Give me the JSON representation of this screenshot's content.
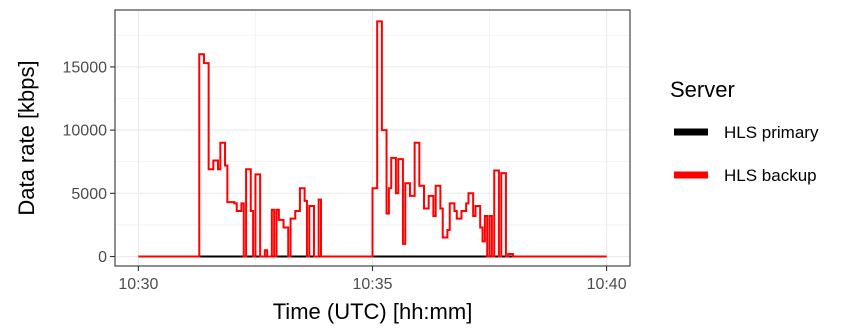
{
  "chart_data": {
    "type": "line",
    "step": true,
    "xlabel": "Time (UTC) [hh:mm]",
    "ylabel": "Data rate [kbps]",
    "xlim": [
      "10:29.5",
      "10:40.5"
    ],
    "ylim": [
      -750,
      19500
    ],
    "x_ticks": [
      {
        "value": "10:30",
        "label": "10:30"
      },
      {
        "value": "10:35",
        "label": "10:35"
      },
      {
        "value": "10:40",
        "label": "10:40"
      }
    ],
    "y_ticks": [
      {
        "value": 0,
        "label": "0"
      },
      {
        "value": 5000,
        "label": "5000"
      },
      {
        "value": 10000,
        "label": "10000"
      },
      {
        "value": 15000,
        "label": "15000"
      }
    ],
    "grid": true,
    "legend": {
      "title": "Server",
      "position": "right",
      "entries": [
        {
          "name": "HLS primary",
          "color": "#000000"
        },
        {
          "name": "HLS backup",
          "color": "#ff0000"
        }
      ]
    },
    "series": [
      {
        "name": "HLS primary",
        "color": "#000000",
        "points": [
          [
            "10:30.0",
            0
          ],
          [
            "10:40.0",
            0
          ]
        ]
      },
      {
        "name": "HLS backup",
        "color": "#ff0000",
        "points": [
          [
            "10:30.0",
            0
          ],
          [
            "10:31.3",
            0
          ],
          [
            "10:31.3",
            16000
          ],
          [
            "10:31.4",
            15300
          ],
          [
            "10:31.5",
            6900
          ],
          [
            "10:31.6",
            7600
          ],
          [
            "10:31.7",
            6900
          ],
          [
            "10:31.75",
            9000
          ],
          [
            "10:31.85",
            7200
          ],
          [
            "10:31.9",
            4300
          ],
          [
            "10:32.05",
            4200
          ],
          [
            "10:32.1",
            3600
          ],
          [
            "10:32.2",
            4200
          ],
          [
            "10:32.25",
            0
          ],
          [
            "10:32.3",
            6900
          ],
          [
            "10:32.4",
            3600
          ],
          [
            "10:32.45",
            0
          ],
          [
            "10:32.5",
            6500
          ],
          [
            "10:32.6",
            0
          ],
          [
            "10:32.7",
            500
          ],
          [
            "10:32.75",
            0
          ],
          [
            "10:32.85",
            3700
          ],
          [
            "10:32.9",
            0
          ],
          [
            "10:32.95",
            3700
          ],
          [
            "10:33.0",
            2900
          ],
          [
            "10:33.1",
            2300
          ],
          [
            "10:33.2",
            0
          ],
          [
            "10:33.25",
            3000
          ],
          [
            "10:33.35",
            3600
          ],
          [
            "10:33.45",
            5400
          ],
          [
            "10:33.55",
            4400
          ],
          [
            "10:33.6",
            0
          ],
          [
            "10:33.65",
            4000
          ],
          [
            "10:33.75",
            0
          ],
          [
            "10:33.85",
            4500
          ],
          [
            "10:33.9",
            0
          ],
          [
            "10:34.0",
            0
          ],
          [
            "10:34.1",
            0
          ],
          [
            "10:34.2",
            0
          ],
          [
            "10:35.0",
            0
          ],
          [
            "10:35.0",
            5400
          ],
          [
            "10:35.1",
            18600
          ],
          [
            "10:35.2",
            10000
          ],
          [
            "10:35.3",
            3400
          ],
          [
            "10:35.35",
            5400
          ],
          [
            "10:35.4",
            7800
          ],
          [
            "10:35.5",
            5000
          ],
          [
            "10:35.55",
            7700
          ],
          [
            "10:35.65",
            1000
          ],
          [
            "10:35.7",
            5800
          ],
          [
            "10:35.8",
            4800
          ],
          [
            "10:35.9",
            9000
          ],
          [
            "10:36.0",
            5600
          ],
          [
            "10:36.1",
            3800
          ],
          [
            "10:36.2",
            4800
          ],
          [
            "10:36.3",
            3200
          ],
          [
            "10:36.35",
            5600
          ],
          [
            "10:36.45",
            3800
          ],
          [
            "10:36.5",
            1500
          ],
          [
            "10:36.6",
            2100
          ],
          [
            "10:36.65",
            4200
          ],
          [
            "10:36.75",
            3600
          ],
          [
            "10:36.8",
            3000
          ],
          [
            "10:36.9",
            3600
          ],
          [
            "10:37.0",
            4200
          ],
          [
            "10:37.05",
            5000
          ],
          [
            "10:37.15",
            3200
          ],
          [
            "10:37.2",
            4000
          ],
          [
            "10:37.3",
            2300
          ],
          [
            "10:37.35",
            1200
          ],
          [
            "10:37.4",
            3200
          ],
          [
            "10:37.45",
            0
          ],
          [
            "10:37.5",
            3200
          ],
          [
            "10:37.55",
            0
          ],
          [
            "10:37.6",
            6800
          ],
          [
            "10:37.7",
            0
          ],
          [
            "10:37.75",
            6600
          ],
          [
            "10:37.85",
            0
          ],
          [
            "10:37.9",
            200
          ],
          [
            "10:38.0",
            0
          ],
          [
            "10:40.0",
            0
          ]
        ]
      }
    ]
  }
}
